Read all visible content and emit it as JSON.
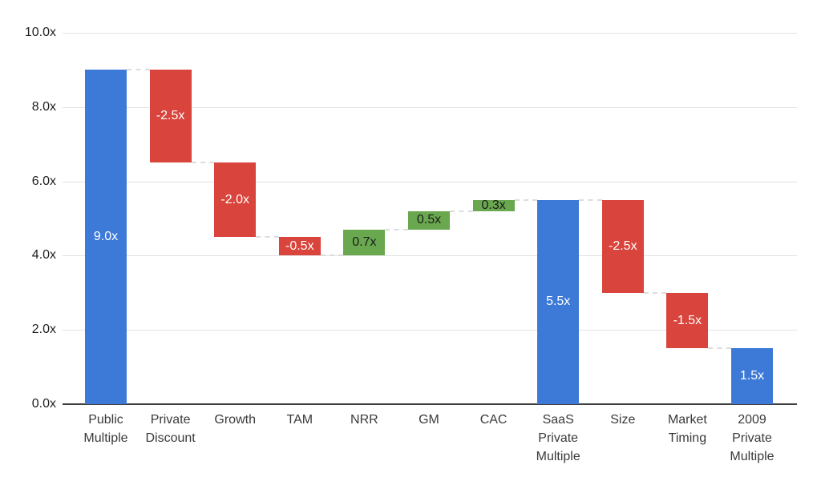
{
  "chart_data": {
    "type": "waterfall",
    "title": "",
    "xlabel": "",
    "ylabel": "",
    "grid": true,
    "legend": false,
    "y_axis": {
      "min": 0,
      "max": 10,
      "tick_step": 2,
      "ticks": [
        {
          "value": 0,
          "label": "0.0x"
        },
        {
          "value": 2,
          "label": "2.0x"
        },
        {
          "value": 4,
          "label": "4.0x"
        },
        {
          "value": 6,
          "label": "6.0x"
        },
        {
          "value": 8,
          "label": "8.0x"
        },
        {
          "value": 10,
          "label": "10.0x"
        }
      ]
    },
    "categories": [
      "Public Multiple",
      "Private Discount",
      "Growth",
      "TAM",
      "NRR",
      "GM",
      "CAC",
      "SaaS Private Multiple",
      "Size",
      "Market Timing",
      "2009 Private Multiple"
    ],
    "bars": [
      {
        "label": "Public Multiple",
        "label_lines": [
          "Public",
          "Multiple"
        ],
        "start": 0,
        "end": 9.0,
        "delta": 9.0,
        "value_label": "9.0x",
        "kind": "total"
      },
      {
        "label": "Private Discount",
        "label_lines": [
          "Private",
          "Discount"
        ],
        "start": 9.0,
        "end": 6.5,
        "delta": -2.5,
        "value_label": "-2.5x",
        "kind": "decrease"
      },
      {
        "label": "Growth",
        "label_lines": [
          "Growth"
        ],
        "start": 6.5,
        "end": 4.5,
        "delta": -2.0,
        "value_label": "-2.0x",
        "kind": "decrease"
      },
      {
        "label": "TAM",
        "label_lines": [
          "TAM"
        ],
        "start": 4.5,
        "end": 4.0,
        "delta": -0.5,
        "value_label": "-0.5x",
        "kind": "decrease"
      },
      {
        "label": "NRR",
        "label_lines": [
          "NRR"
        ],
        "start": 4.0,
        "end": 4.7,
        "delta": 0.7,
        "value_label": "0.7x",
        "kind": "increase"
      },
      {
        "label": "GM",
        "label_lines": [
          "GM"
        ],
        "start": 4.7,
        "end": 5.2,
        "delta": 0.5,
        "value_label": "0.5x",
        "kind": "increase"
      },
      {
        "label": "CAC",
        "label_lines": [
          "CAC"
        ],
        "start": 5.2,
        "end": 5.5,
        "delta": 0.3,
        "value_label": "0.3x",
        "kind": "increase"
      },
      {
        "label": "SaaS Private Multiple",
        "label_lines": [
          "SaaS",
          "Private",
          "Multiple"
        ],
        "start": 0,
        "end": 5.5,
        "delta": 5.5,
        "value_label": "5.5x",
        "kind": "total"
      },
      {
        "label": "Size",
        "label_lines": [
          "Size"
        ],
        "start": 5.5,
        "end": 3.0,
        "delta": -2.5,
        "value_label": "-2.5x",
        "kind": "decrease"
      },
      {
        "label": "Market Timing",
        "label_lines": [
          "Market",
          "Timing"
        ],
        "start": 3.0,
        "end": 1.5,
        "delta": -1.5,
        "value_label": "-1.5x",
        "kind": "decrease"
      },
      {
        "label": "2009 Private Multiple",
        "label_lines": [
          "2009",
          "Private",
          "Multiple"
        ],
        "start": 0,
        "end": 1.5,
        "delta": 1.5,
        "value_label": "1.5x",
        "kind": "total"
      }
    ],
    "colors": {
      "total": "#3d7ad8",
      "decrease": "#d9443c",
      "increase": "#6aa84f",
      "gridline": "#e2e2e2",
      "axis_line": "#3f3f3f",
      "connector": "#dcdcdc",
      "tick_text": "#1f1f1f",
      "category_text": "#3a3a3a"
    },
    "value_label_text_colors": {
      "total": "#ffffff",
      "decrease": "#ffffff",
      "increase": "#1c1c1c"
    }
  }
}
